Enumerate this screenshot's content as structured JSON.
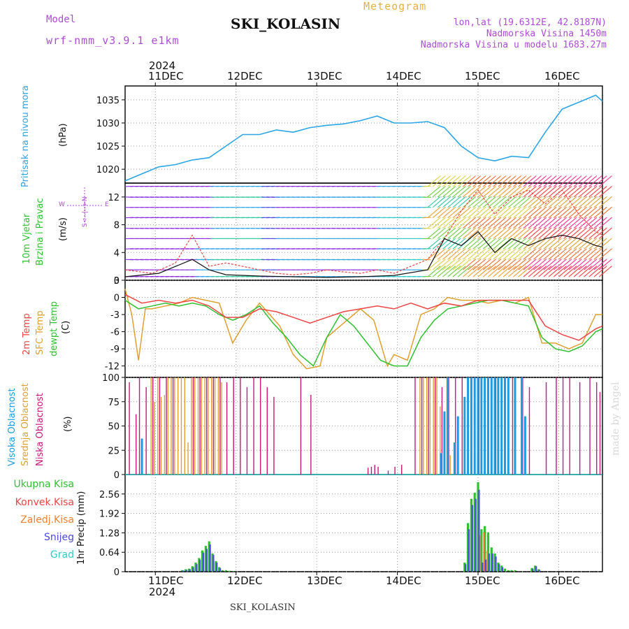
{
  "header": {
    "model_label": "Model",
    "model_name": "wrf-nmm_v3.9.1 e1km",
    "title": "SKI_KOLASIN",
    "meteogram_label": "Meteogram",
    "coords": "lon,lat (19.6312E, 42.8187N)",
    "altitude": "Nadmorska Visina 1450m",
    "model_altitude": "Nadmorska Visina u modelu 1683.27m",
    "footer_station": "SKI_KOLASIN",
    "watermark": "made by Angel"
  },
  "time_axis": {
    "year": "2024",
    "days": [
      "11DEC",
      "12DEC",
      "13DEC",
      "14DEC",
      "15DEC",
      "16DEC"
    ],
    "start": "2024-12-10T15:00",
    "end": "2024-12-16T13:00"
  },
  "colors": {
    "pressure": "#2ba5e6",
    "temp2m": "#ee4444",
    "sfc": "#e0a030",
    "dewpt": "#2fc12f",
    "high_cloud": "#1c9be0",
    "mid_cloud": "#e0a030",
    "low_cloud": "#c8187a",
    "total_precip": "#2fc12f",
    "conv_precip": "#ee4444",
    "frz_precip": "#f08030",
    "snow": "#4a4ae0",
    "graupel": "#30c8c8",
    "label_purple": "#b04ad8"
  },
  "panels": {
    "pressure": {
      "label1": "Pritisak na nivou mora",
      "label2": "(hPa)",
      "ticks": [
        "1020",
        "1025",
        "1030",
        "1035"
      ]
    },
    "wind": {
      "label1": "10m Vjetar",
      "label2": "Brzina i Pravac",
      "label3": "(m/s)",
      "ticks": [
        "0",
        "4",
        "8",
        "12"
      ],
      "compass": {
        "w": "W",
        "e": "E",
        "ns": "S<--|-->N"
      }
    },
    "temp": {
      "label1": "2m Temp",
      "label2": "SFC Temp",
      "label3": "dewpt Temp",
      "label4": "(C)",
      "ticks": [
        "-12",
        "-9",
        "-6",
        "-3",
        "0",
        "3"
      ]
    },
    "cloud": {
      "label1": "Visoka Oblacnost",
      "label2": "Srednja Oblacnost",
      "label3": "Niska Oblacnost",
      "label4": "(%)",
      "ticks": [
        "0",
        "25",
        "50",
        "75",
        "100"
      ]
    },
    "precip": {
      "leg_total": "Ukupna Kisa",
      "leg_conv": "Konvek.Kisa",
      "leg_frz": "Zaledj.Kisa",
      "leg_snow": "Snijeg",
      "leg_grad": "Grad",
      "axis": "1hr Precip (mm)",
      "ticks": [
        "0",
        "0.64",
        "1.28",
        "1.92",
        "2.56"
      ]
    }
  },
  "chart_data": [
    {
      "type": "line",
      "title": "",
      "ylabel": "Pritisak na nivou mora (hPa)",
      "ylim": [
        1017,
        1038
      ],
      "x_unit": "hours since 2024-12-10T15:00",
      "series": [
        {
          "name": "Pritisak na nivou mora",
          "x": [
            0,
            5,
            10,
            15,
            20,
            25,
            30,
            35,
            40,
            45,
            50,
            55,
            60,
            65,
            70,
            75,
            80,
            85,
            90,
            95,
            100,
            105,
            110,
            115,
            120,
            125,
            130,
            135,
            140,
            142
          ],
          "values": [
            1017.5,
            1019,
            1020.5,
            1021,
            1022,
            1022.5,
            1025,
            1027.5,
            1027.5,
            1028.5,
            1028,
            1029,
            1029.5,
            1029.8,
            1030.5,
            1031.5,
            1030,
            1030,
            1030.3,
            1029,
            1025,
            1022.5,
            1021.8,
            1022.8,
            1022.5,
            1028,
            1033,
            1034.5,
            1036,
            1034.7
          ]
        }
      ]
    },
    {
      "type": "line",
      "title": "",
      "ylabel": "10m Vjetar Brzina i Pravac (m/s)",
      "ylim": [
        0,
        14
      ],
      "x_unit": "hours since 2024-12-10T15:00",
      "series": [
        {
          "name": "gust",
          "x": [
            0,
            8,
            15,
            20,
            25,
            30,
            35,
            40,
            45,
            50,
            55,
            60,
            65,
            70,
            75,
            80,
            85,
            90,
            95,
            100,
            105,
            110,
            115,
            120,
            125,
            130,
            135,
            140,
            142
          ],
          "values": [
            1.5,
            1.0,
            2.5,
            6.5,
            2.0,
            2.5,
            2.0,
            1.5,
            1.0,
            0.8,
            1.0,
            1.5,
            1.2,
            1.0,
            1.5,
            1.0,
            2.0,
            3.0,
            6.0,
            10.0,
            13.0,
            9.5,
            12.0,
            13.0,
            11.0,
            13.0,
            9.5,
            7.0,
            6.5
          ]
        },
        {
          "name": "speed",
          "x": [
            0,
            10,
            20,
            25,
            30,
            40,
            50,
            60,
            70,
            80,
            90,
            95,
            100,
            105,
            110,
            115,
            120,
            125,
            130,
            135,
            140,
            142
          ],
          "values": [
            0.5,
            1.0,
            3.0,
            1.5,
            0.8,
            0.6,
            0.5,
            0.4,
            0.5,
            0.7,
            1.5,
            6.0,
            5.0,
            7.0,
            4.0,
            6.0,
            5.0,
            6.0,
            6.5,
            6.0,
            5.0,
            4.8
          ]
        }
      ]
    },
    {
      "type": "line",
      "title": "",
      "ylabel": "Temp (C)",
      "ylim": [
        -14,
        3
      ],
      "x_unit": "hours since 2024-12-10T15:00",
      "series": [
        {
          "name": "2m Temp",
          "x": [
            0,
            5,
            10,
            15,
            20,
            25,
            30,
            35,
            40,
            45,
            50,
            55,
            60,
            65,
            70,
            75,
            80,
            85,
            90,
            95,
            100,
            105,
            110,
            115,
            120,
            125,
            130,
            135,
            140,
            142
          ],
          "values": [
            0.5,
            -1,
            -0.5,
            -1,
            -0.5,
            -1.5,
            -3.5,
            -3.5,
            -2,
            -2.5,
            -3.5,
            -4.5,
            -3.5,
            -2.5,
            -2,
            -1.5,
            -2,
            -1,
            -2,
            -1,
            -1.5,
            -0.5,
            -0.5,
            -0.5,
            -0.5,
            -5,
            -6.5,
            -7.5,
            -5.5,
            -5
          ]
        },
        {
          "name": "SFC Temp",
          "x": [
            0,
            2,
            4,
            6,
            8,
            12,
            16,
            20,
            24,
            28,
            32,
            36,
            40,
            46,
            50,
            54,
            58,
            60,
            64,
            70,
            74,
            78,
            80,
            84,
            88,
            92,
            96,
            100,
            104,
            108,
            112,
            116,
            120,
            124,
            128,
            132,
            136,
            140,
            142
          ],
          "values": [
            1.5,
            -3,
            -11,
            -2,
            -2,
            -1.5,
            -1,
            0,
            -0.5,
            -1,
            -8,
            -4,
            -1,
            -5,
            -10,
            -12.5,
            -12,
            -7,
            -5,
            -2,
            -4,
            -12,
            -10,
            -11,
            -3,
            -2,
            0,
            -0.5,
            -0.5,
            -1,
            -0.5,
            -1,
            0,
            -8,
            -8,
            -9,
            -8,
            -3,
            -3
          ]
        },
        {
          "name": "dewpt Temp",
          "x": [
            0,
            4,
            8,
            12,
            16,
            20,
            24,
            28,
            32,
            36,
            40,
            44,
            48,
            52,
            56,
            60,
            64,
            68,
            72,
            76,
            80,
            84,
            88,
            92,
            96,
            100,
            104,
            108,
            112,
            116,
            120,
            124,
            128,
            132,
            136,
            140,
            142
          ],
          "values": [
            -0.5,
            -2,
            -1.5,
            -1,
            -1.5,
            -1,
            -1.5,
            -3,
            -4,
            -3,
            -1.5,
            -4.5,
            -7,
            -10,
            -12,
            -7,
            -3,
            -5,
            -8,
            -11,
            -12,
            -12,
            -7,
            -4,
            -2,
            -1.5,
            -1,
            -0.5,
            -0.5,
            -1,
            -1.5,
            -7,
            -9,
            -9.5,
            -8.5,
            -6,
            -5.5
          ]
        }
      ]
    },
    {
      "type": "bar",
      "title": "",
      "ylabel": "Oblacnost (%)",
      "ylim": [
        0,
        100
      ],
      "x_unit": "hours since 2024-12-10T15:00",
      "series": [
        {
          "name": "Visoka Oblacnost",
          "x": [
            5,
            94,
            95,
            96,
            98,
            99,
            101,
            102,
            103,
            104,
            105,
            106,
            107,
            108,
            109,
            110,
            111,
            112,
            113,
            114,
            116,
            118,
            119
          ],
          "values": [
            37,
            22,
            65,
            100,
            33,
            60,
            80,
            100,
            100,
            100,
            100,
            100,
            100,
            100,
            100,
            100,
            100,
            100,
            100,
            100,
            100,
            100,
            60
          ]
        },
        {
          "name": "Srednja Oblacnost",
          "x": [
            8,
            9,
            10,
            11,
            12,
            13,
            14,
            15,
            16,
            17,
            18,
            19,
            20,
            21,
            22,
            23,
            24,
            25,
            26,
            27,
            28,
            29,
            88,
            89,
            90,
            91,
            92,
            93,
            94,
            96,
            97
          ],
          "values": [
            100,
            75,
            100,
            80,
            82,
            100,
            100,
            100,
            100,
            100,
            100,
            33,
            100,
            100,
            100,
            100,
            100,
            100,
            100,
            100,
            100,
            95,
            100,
            100,
            100,
            100,
            100,
            100,
            70,
            100,
            20
          ]
        },
        {
          "name": "Niska Oblacnost",
          "x": [
            1,
            3,
            4,
            6,
            8,
            10,
            12,
            14,
            20,
            22,
            24,
            26,
            28,
            30,
            32,
            34,
            36,
            38,
            40,
            42,
            44,
            52,
            55,
            72,
            73,
            74,
            75,
            78,
            80,
            82,
            86,
            88,
            90,
            92,
            94,
            96,
            98,
            100,
            105,
            110,
            115,
            118,
            120,
            125,
            128,
            130,
            132,
            135,
            138,
            140,
            141
          ],
          "values": [
            95,
            62,
            100,
            90,
            100,
            100,
            100,
            100,
            100,
            100,
            100,
            100,
            100,
            95,
            100,
            100,
            90,
            100,
            100,
            90,
            80,
            100,
            82,
            7,
            8,
            10,
            8,
            4,
            8,
            10,
            100,
            100,
            100,
            100,
            90,
            100,
            100,
            100,
            100,
            100,
            100,
            100,
            90,
            95,
            100,
            100,
            100,
            95,
            100,
            95,
            85
          ]
        }
      ]
    },
    {
      "type": "bar",
      "title": "",
      "ylabel": "1hr Precip (mm)",
      "ylim": [
        0,
        3.2
      ],
      "x_unit": "hours since 2024-12-10T15:00",
      "series": [
        {
          "name": "Ukupna Kisa",
          "x": [
            17,
            18,
            19,
            20,
            21,
            22,
            23,
            24,
            25,
            26,
            27,
            28,
            29,
            30,
            31,
            32,
            101,
            102,
            103,
            104,
            105,
            106,
            107,
            108,
            109,
            110,
            111,
            112,
            113,
            114,
            115,
            116,
            121,
            122,
            123
          ],
          "values": [
            0.05,
            0.08,
            0.1,
            0.18,
            0.3,
            0.45,
            0.7,
            0.85,
            1.0,
            0.6,
            0.35,
            0.15,
            0.05,
            0.05,
            0.03,
            0.02,
            0.3,
            1.6,
            2.4,
            2.6,
            2.95,
            1.4,
            1.5,
            1.3,
            0.8,
            0.6,
            0.3,
            0.2,
            0.1,
            0.05,
            0.05,
            0.05,
            0.12,
            0.2,
            0.08
          ]
        },
        {
          "name": "Snijeg",
          "x": [
            17,
            18,
            19,
            20,
            21,
            22,
            23,
            24,
            25,
            26,
            27,
            28,
            101,
            102,
            103,
            104,
            105,
            106,
            107,
            108,
            109,
            110,
            111,
            112,
            121,
            122,
            123
          ],
          "values": [
            0.04,
            0.06,
            0.08,
            0.15,
            0.25,
            0.4,
            0.62,
            0.75,
            0.9,
            0.55,
            0.3,
            0.12,
            0.25,
            1.4,
            2.2,
            2.4,
            2.7,
            0.3,
            0.4,
            0.6,
            0.6,
            0.5,
            0.25,
            0.15,
            0.1,
            0.18,
            0.06
          ]
        },
        {
          "name": "Zaledj.Kisa",
          "x": [
            106,
            107,
            108
          ],
          "values": [
            1.2,
            1.3,
            0.7
          ]
        }
      ]
    }
  ]
}
